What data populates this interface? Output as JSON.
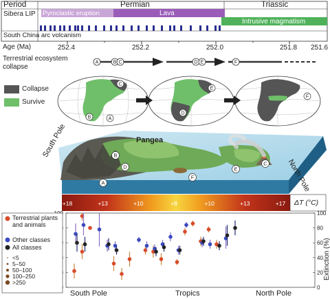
{
  "timeline": {
    "period_label": "Period",
    "periods": [
      {
        "name": "Permian"
      },
      {
        "name": "Triassic"
      }
    ],
    "sibera_label": "Sibera LIP",
    "pyroclastic_label": "Pyroclastic eruption",
    "lava_label": "Lava",
    "intrusive_label": "Intrusive magmatism",
    "south_china_label": "South China arc volcanism",
    "age_label": "Age (Ma)",
    "ages": [
      "252.4",
      "252.2",
      "252.0",
      "251.8",
      "251.6"
    ],
    "terrestrial_label": "Terrestrial ecosystem",
    "collapse_label": "collapse",
    "event_markers": [
      "A",
      "B",
      "C",
      "D",
      "E",
      "F"
    ]
  },
  "legend_top": {
    "collapse": "Collapse",
    "survive": "Survive",
    "collapse_color": "#555555",
    "survive_color": "#6fbf6a"
  },
  "maps": {
    "map1_labels": [
      "C",
      "B",
      "A"
    ],
    "map2_labels": [
      "E",
      "D"
    ],
    "map3_labels": [
      "F"
    ]
  },
  "landscape": {
    "pangea_label": "Pangea",
    "south_pole": "South Pole",
    "north_pole": "North Pole",
    "markers": [
      "B",
      "D",
      "A",
      "F",
      "E",
      "C"
    ]
  },
  "temp_bar": {
    "labels": [
      "+18",
      "+13",
      "+10",
      "+8",
      "+10",
      "+13",
      "+17"
    ],
    "delta_label": "ΔT (°C)"
  },
  "chart_legend": {
    "terrestrial": "Terrestrial plants and animals",
    "other": "Other classes",
    "all": "All classes",
    "sizes": [
      "<5",
      "5–50",
      "50–100",
      "100–250",
      ">250"
    ],
    "terrestrial_color": "#d94a2b",
    "other_color": "#3b4bbf",
    "all_color": "#222222"
  },
  "chart_data": {
    "type": "scatter",
    "ylabel": "Extinction (%)",
    "ylim": [
      0,
      100
    ],
    "yticks": [
      0,
      20,
      40,
      60,
      80,
      100
    ],
    "x_categories": [
      "South Pole",
      "Tropics",
      "North Pole"
    ],
    "series": [
      {
        "name": "Terrestrial plants and animals",
        "points": [
          {
            "x": 1,
            "y": 22,
            "lo": 12,
            "hi": 32
          },
          {
            "x": 2,
            "y": 96,
            "lo": 90,
            "hi": 100
          },
          {
            "x": 2,
            "y": 48,
            "lo": 38,
            "hi": 58
          },
          {
            "x": 3,
            "y": 80,
            "lo": 78,
            "hi": 82
          },
          {
            "x": 6,
            "y": 32,
            "lo": 22,
            "hi": 42
          },
          {
            "x": 7,
            "y": 18,
            "lo": 10,
            "hi": 26
          },
          {
            "x": 8,
            "y": 38,
            "lo": 28,
            "hi": 48
          },
          {
            "x": 10,
            "y": 50,
            "lo": 44,
            "hi": 56
          },
          {
            "x": 11,
            "y": 48,
            "lo": 40,
            "hi": 56
          },
          {
            "x": 12,
            "y": 38,
            "lo": 30,
            "hi": 46
          },
          {
            "x": 14,
            "y": 34,
            "lo": 30,
            "hi": 38
          },
          {
            "x": 15,
            "y": 75,
            "lo": 70,
            "hi": 80
          },
          {
            "x": 16,
            "y": 86,
            "lo": 82,
            "hi": 90
          },
          {
            "x": 17,
            "y": 62,
            "lo": 56,
            "hi": 68
          },
          {
            "x": 18,
            "y": 78,
            "lo": 74,
            "hi": 82
          },
          {
            "x": 19,
            "y": 58,
            "lo": 52,
            "hi": 64
          }
        ]
      },
      {
        "name": "Other classes",
        "points": [
          {
            "x": 1,
            "y": 72,
            "lo": 58,
            "hi": 86
          },
          {
            "x": 2,
            "y": 84,
            "lo": 70,
            "hi": 100
          },
          {
            "x": 4,
            "y": 78,
            "lo": 55,
            "hi": 100
          },
          {
            "x": 5,
            "y": 56,
            "lo": 48,
            "hi": 64
          },
          {
            "x": 6,
            "y": 56,
            "lo": 50,
            "hi": 62
          },
          {
            "x": 9,
            "y": 64,
            "lo": 60,
            "hi": 68
          },
          {
            "x": 10,
            "y": 56,
            "lo": 50,
            "hi": 62
          },
          {
            "x": 11,
            "y": 52,
            "lo": 46,
            "hi": 58
          },
          {
            "x": 12,
            "y": 58,
            "lo": 52,
            "hi": 64
          },
          {
            "x": 13,
            "y": 68,
            "lo": 62,
            "hi": 74
          },
          {
            "x": 14,
            "y": 50,
            "lo": 44,
            "hi": 56
          },
          {
            "x": 15,
            "y": 84,
            "lo": 80,
            "hi": 88
          },
          {
            "x": 17,
            "y": 60,
            "lo": 54,
            "hi": 66
          },
          {
            "x": 18,
            "y": 58,
            "lo": 52,
            "hi": 64
          },
          {
            "x": 20,
            "y": 66,
            "lo": 52,
            "hi": 82
          }
        ]
      },
      {
        "name": "All classes",
        "points": [
          {
            "x": 1,
            "y": 60,
            "lo": 48,
            "hi": 72
          },
          {
            "x": 2,
            "y": 58,
            "lo": 48,
            "hi": 68
          },
          {
            "x": 5,
            "y": 58,
            "lo": 50,
            "hi": 66
          },
          {
            "x": 6,
            "y": 50,
            "lo": 44,
            "hi": 56
          },
          {
            "x": 11,
            "y": 48,
            "lo": 42,
            "hi": 54
          },
          {
            "x": 12,
            "y": 54,
            "lo": 48,
            "hi": 60
          },
          {
            "x": 14,
            "y": 50,
            "lo": 44,
            "hi": 56
          },
          {
            "x": 17,
            "y": 62,
            "lo": 56,
            "hi": 68
          },
          {
            "x": 19,
            "y": 56,
            "lo": 50,
            "hi": 62
          },
          {
            "x": 20,
            "y": 70,
            "lo": 56,
            "hi": 84
          },
          {
            "x": 21,
            "y": 80,
            "lo": 70,
            "hi": 90
          }
        ]
      }
    ]
  }
}
